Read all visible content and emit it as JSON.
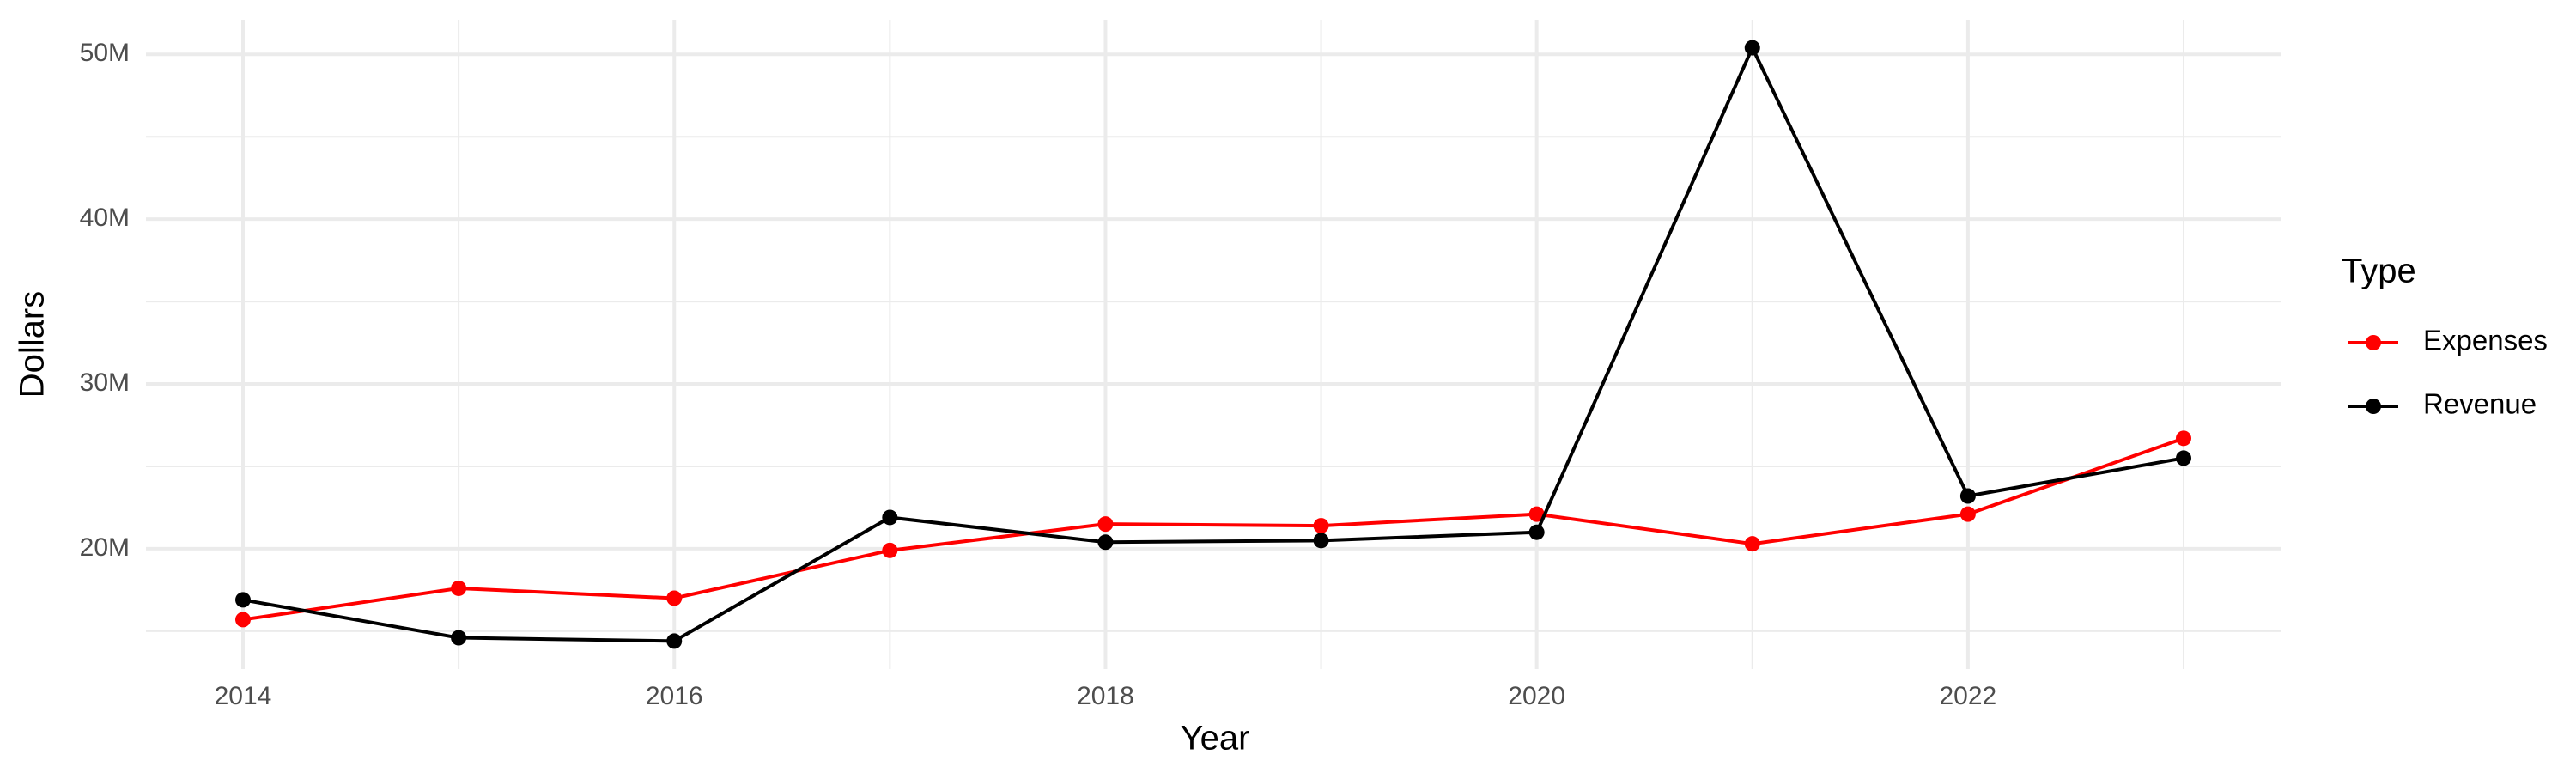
{
  "chart_data": {
    "type": "line",
    "x_label": "Year",
    "y_label": "Dollars",
    "x": [
      2014,
      2015,
      2016,
      2017,
      2018,
      2019,
      2020,
      2021,
      2022,
      2023
    ],
    "series": [
      {
        "name": "Expenses",
        "color": "#ff0000",
        "values": [
          15700000,
          17600000,
          17000000,
          19900000,
          21500000,
          21400000,
          22100000,
          20300000,
          22100000,
          26700000
        ]
      },
      {
        "name": "Revenue",
        "color": "#000000",
        "values": [
          16900000,
          14600000,
          14400000,
          21900000,
          20400000,
          20500000,
          21000000,
          50400000,
          23200000,
          25500000
        ]
      }
    ],
    "xlim": [
      2013.55,
      2023.45
    ],
    "xticks": [
      2014,
      2016,
      2018,
      2020,
      2022
    ],
    "xminor": [
      2015,
      2017,
      2019,
      2021,
      2023
    ],
    "ylim": [
      12700000,
      52100000
    ],
    "yticks": [
      {
        "value": 20000000,
        "label": "20M"
      },
      {
        "value": 30000000,
        "label": "30M"
      },
      {
        "value": 40000000,
        "label": "40M"
      },
      {
        "value": 50000000,
        "label": "50M"
      }
    ],
    "yminor": [
      15000000,
      25000000,
      35000000,
      45000000
    ],
    "grid": true,
    "legend_title": "Type",
    "legend_position": "right"
  }
}
